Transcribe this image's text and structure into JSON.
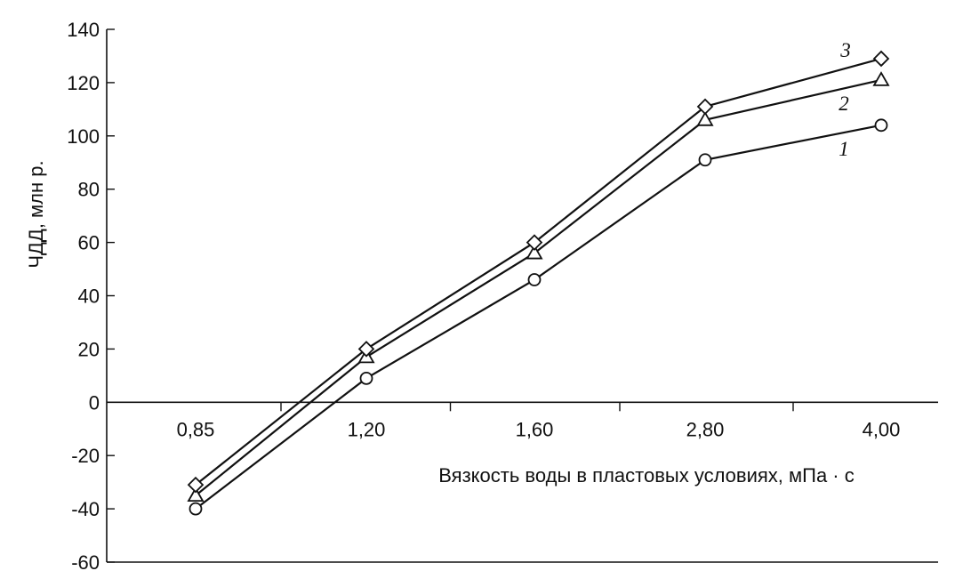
{
  "chart_data": {
    "type": "line",
    "categories": [
      "0,85",
      "1,20",
      "1,60",
      "2,80",
      "4,00"
    ],
    "series": [
      {
        "name": "1",
        "marker": "circle",
        "values": [
          -40,
          9,
          46,
          91,
          104
        ]
      },
      {
        "name": "2",
        "marker": "triangle",
        "values": [
          -35,
          17,
          56,
          106,
          121
        ]
      },
      {
        "name": "3",
        "marker": "diamond",
        "values": [
          -31,
          20,
          60,
          111,
          129
        ]
      }
    ],
    "xlabel": "Вязкость воды в пластовых условиях, мПа · с",
    "ylabel": "ЧДД, млн р.",
    "ylim": [
      -60,
      140
    ],
    "yticks": [
      140,
      120,
      100,
      80,
      60,
      40,
      20,
      0,
      -20,
      -40,
      -60
    ],
    "ytick_labels": [
      "140",
      "120",
      "100",
      "80",
      "60",
      "40",
      "20",
      "0",
      "-20",
      "-40",
      "-60"
    ],
    "grid": false,
    "colors": {
      "line": "#111111",
      "background": "#ffffff"
    }
  }
}
